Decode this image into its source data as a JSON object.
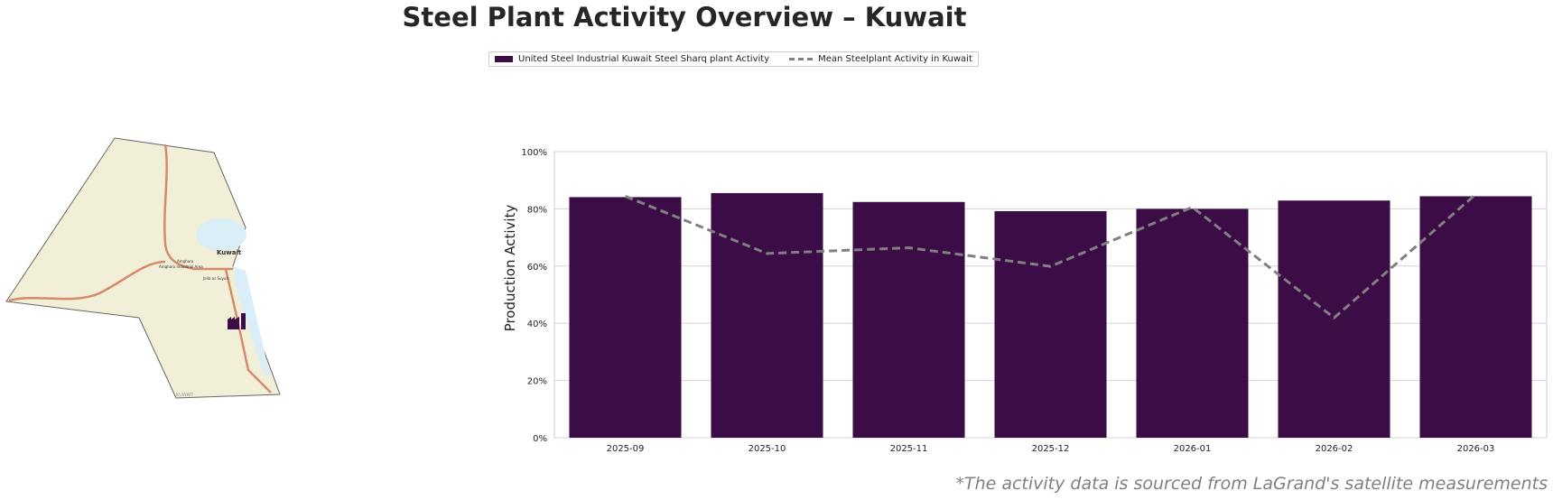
{
  "title": "Steel Plant Activity Overview – Kuwait",
  "legend": {
    "bar_label": "United Steel Industrial Kuwait Steel Sharq plant Activity",
    "line_label": "Mean Steelplant Activity in Kuwait"
  },
  "map": {
    "labels": [
      "Kuwait",
      "Amghara",
      "Amghara Industrial Area",
      "Jalib as Suyuh",
      "KUWAIT"
    ],
    "marker_icon": "factory-icon"
  },
  "footnote": "*The activity data is sourced from LaGrand's satellite measurements",
  "chart_data": {
    "type": "bar",
    "title": "",
    "xlabel": "",
    "ylabel": "Production Activity",
    "ylim": [
      0,
      100
    ],
    "yticks": [
      "0%",
      "20%",
      "40%",
      "60%",
      "80%",
      "100%"
    ],
    "grid": true,
    "legend_placement": "top-center",
    "categories": [
      "2025-09",
      "2025-10",
      "2025-11",
      "2025-12",
      "2026-01",
      "2026-02",
      "2026-03"
    ],
    "series": [
      {
        "name": "United Steel Industrial Kuwait Steel Sharq plant Activity",
        "type": "bar",
        "color": "#3b0c45",
        "values": [
          84.1,
          85.5,
          82.4,
          79.2,
          80.0,
          82.9,
          84.4
        ]
      },
      {
        "name": "Mean Steelplant Activity in Kuwait",
        "type": "line",
        "style": "dashed",
        "color": "#808080",
        "values": [
          84.4,
          64.4,
          66.4,
          59.9,
          80.6,
          41.9,
          85.1
        ]
      }
    ]
  }
}
